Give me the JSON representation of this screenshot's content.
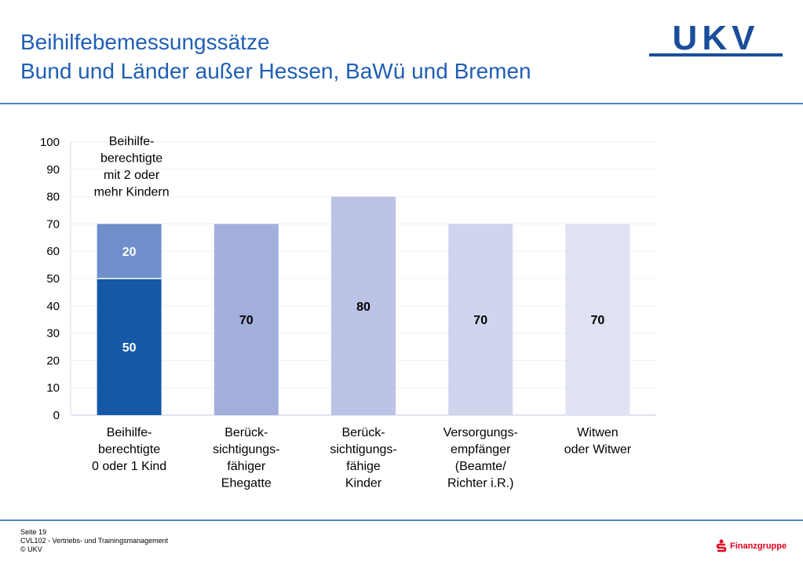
{
  "header": {
    "title_line1": "Beihilfebemessungssätze",
    "title_line2": "Bund und Länder außer Hessen, BaWü und Bremen",
    "logo_text": "UKV"
  },
  "footer": {
    "line1": "Seite 19",
    "line2": "CVL102 - Vertriebs- und Trainingsmanagement",
    "line3": "© UKV",
    "brand": "Finanzgruppe"
  },
  "colors": {
    "title": "#1f5fb4",
    "rule": "#4d86c6",
    "brand_red": "#e3001b"
  },
  "chart_data": {
    "type": "bar",
    "stacked": true,
    "ylim": [
      0,
      100
    ],
    "yticks": [
      0,
      10,
      20,
      30,
      40,
      50,
      60,
      70,
      80,
      90,
      100
    ],
    "grid": true,
    "categories": [
      [
        "Beihilfe-",
        "berechtigte",
        "0 oder 1 Kind"
      ],
      [
        "Berück-",
        "sichtigungs-",
        "fähiger",
        "Ehegatte"
      ],
      [
        "Berück-",
        "sichtigungs-",
        "fähige",
        "Kinder"
      ],
      [
        "Versorgungs-",
        "empfänger",
        "(Beamte/",
        "Richter i.R.)"
      ],
      [
        "Witwen",
        "oder Witwer"
      ]
    ],
    "bars": [
      {
        "segments": [
          {
            "value": 50,
            "label": "50",
            "color": "#1458a6",
            "label_color": "#ffffff"
          },
          {
            "value": 20,
            "label": "20",
            "color": "#6f8fcb",
            "label_color": "#ffffff"
          }
        ],
        "annotation": [
          "Beihilfe-",
          "berechtigte",
          "mit 2 oder",
          "mehr Kindern"
        ]
      },
      {
        "segments": [
          {
            "value": 70,
            "label": "70",
            "color": "#a2afdb",
            "label_color": "#000000"
          }
        ]
      },
      {
        "segments": [
          {
            "value": 80,
            "label": "80",
            "color": "#bcc3e6",
            "label_color": "#000000"
          }
        ]
      },
      {
        "segments": [
          {
            "value": 70,
            "label": "70",
            "color": "#d0d5ee",
            "label_color": "#000000"
          }
        ]
      },
      {
        "segments": [
          {
            "value": 70,
            "label": "70",
            "color": "#dfe2f3",
            "label_color": "#000000"
          }
        ]
      }
    ]
  }
}
